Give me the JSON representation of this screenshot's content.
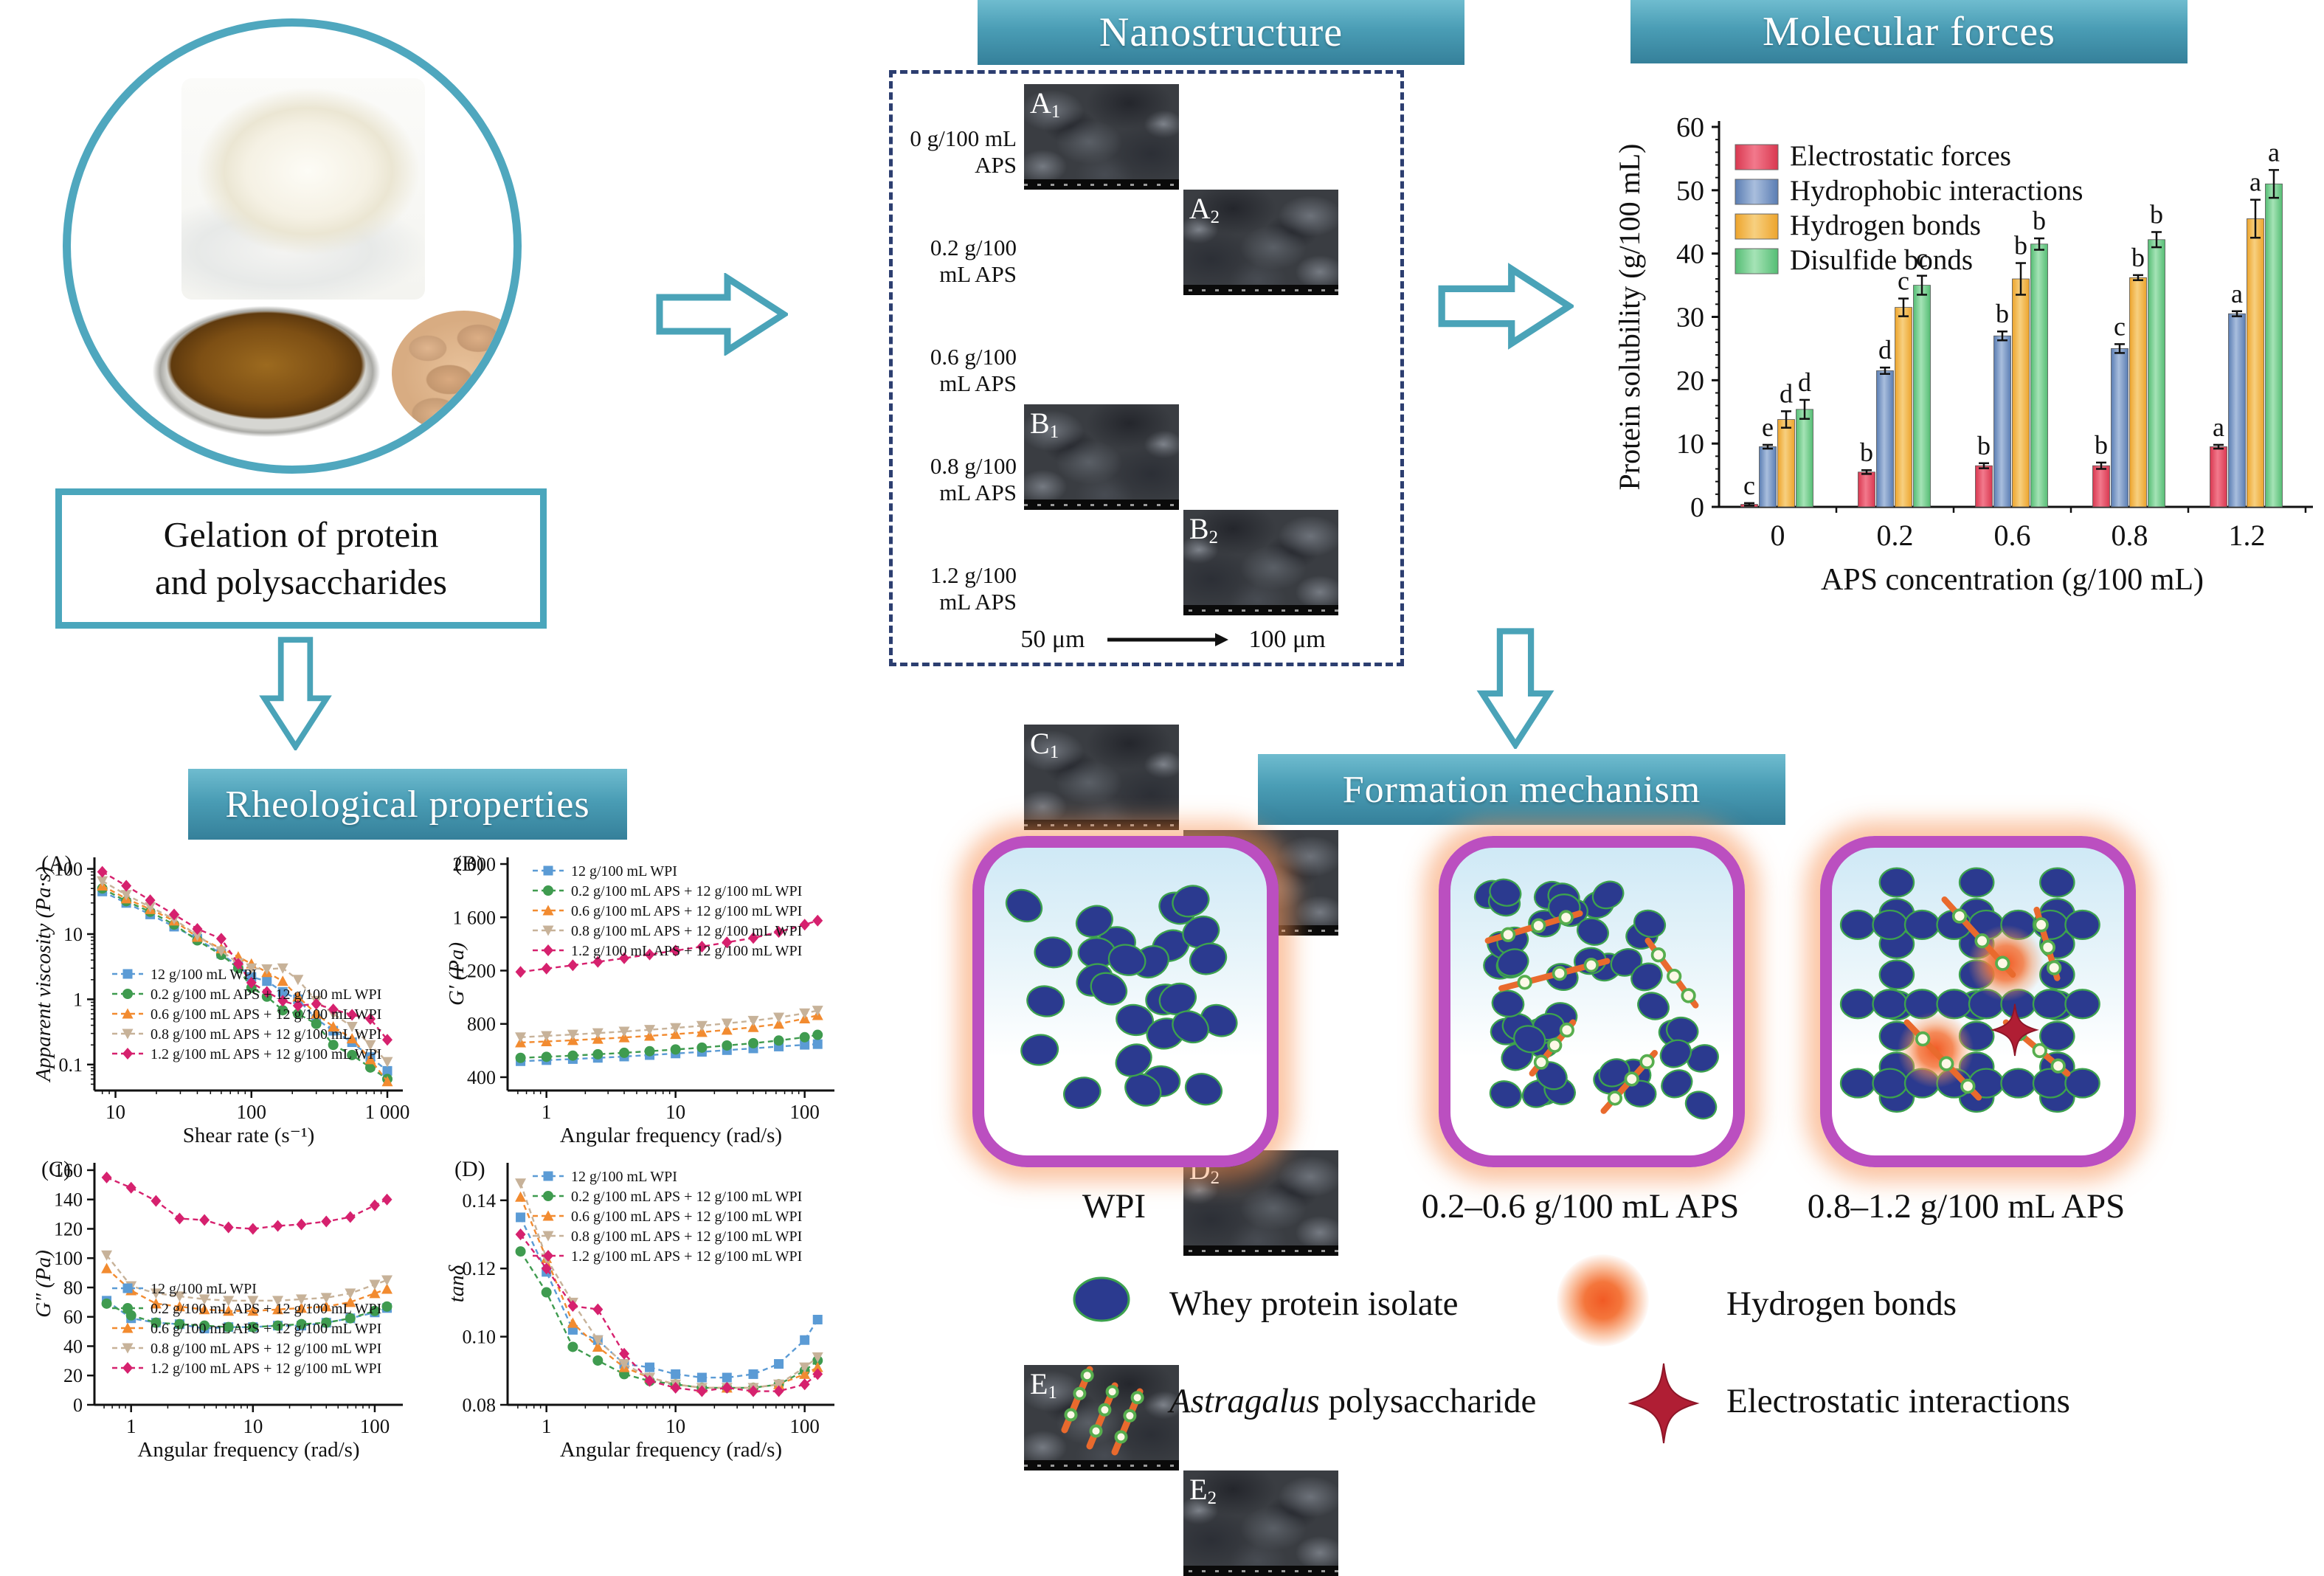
{
  "banners": {
    "nanostructure": "Nanostructure",
    "molecular_forces": "Molecular forces",
    "rheological": "Rheological properties",
    "formation": "Formation mechanism"
  },
  "source_panel": {
    "caption_line1": "Gelation of protein",
    "caption_line2": "and polysaccharides"
  },
  "nanostructure": {
    "rows": [
      {
        "label": "0 g/100 mL APS",
        "base": "A"
      },
      {
        "label": "0.2 g/100 mL APS",
        "base": "B"
      },
      {
        "label": "0.6 g/100 mL APS",
        "base": "C"
      },
      {
        "label": "0.8 g/100 mL APS",
        "base": "D"
      },
      {
        "label": "1.2 g/100 mL APS",
        "base": "E"
      }
    ],
    "scale_left": "50 μm",
    "scale_right": "100 μm"
  },
  "formation": {
    "panel_labels": [
      "WPI",
      "0.2–0.6 g/100 mL APS",
      "0.8–1.2 g/100 mL APS"
    ],
    "legend": [
      {
        "icon": "wpi-oval-icon",
        "label": "Whey protein isolate"
      },
      {
        "icon": "hydrogen-bond-icon",
        "label": "Hydrogen bonds"
      },
      {
        "icon": "aps-chain-icon",
        "italic": "Astragalus",
        "rest": " polysaccharide"
      },
      {
        "icon": "electrostatic-star-icon",
        "label": "Electrostatic interactions"
      }
    ]
  },
  "colors": {
    "banner_teal": "#4a9db5",
    "arrow_teal": "#4aa3b8",
    "dashed_border": "#2c3e70",
    "panel_border": "#bb4fc0",
    "wpi_oval": "#2b3a8f",
    "oval_outline": "#3da24e",
    "aps_chain": "#e96a2d",
    "ring_green": "#57ae4e",
    "star_red": "#b01e34",
    "glow_orange": "#f15a24"
  },
  "chart_data": [
    {
      "id": "molecular-forces-bar",
      "type": "bar",
      "title": "Molecular forces",
      "xlabel": "APS concentration (g/100 mL)",
      "ylabel": "Protein solubility (g/100 mL)",
      "ylim": [
        0,
        60
      ],
      "yticks": [
        0,
        10,
        20,
        30,
        40,
        50,
        60
      ],
      "categories": [
        "0",
        "0.2",
        "0.6",
        "0.8",
        "1.2"
      ],
      "legend_position": "top-left",
      "grid": false,
      "series": [
        {
          "name": "Electrostatic forces",
          "fill_dark": "#d93850",
          "fill_light": "#f2798c",
          "values": [
            0.4,
            5.5,
            6.5,
            6.5,
            9.5
          ],
          "errors": [
            0.2,
            0.3,
            0.4,
            0.5,
            0.3
          ],
          "letters": [
            "c",
            "b",
            "b",
            "b",
            "a"
          ]
        },
        {
          "name": "Hydrophobic interactions",
          "fill_dark": "#5a7db3",
          "fill_light": "#a9bedd",
          "values": [
            9.5,
            21.5,
            27.0,
            25.0,
            30.5
          ],
          "errors": [
            0.3,
            0.5,
            0.7,
            0.7,
            0.4
          ],
          "letters": [
            "e",
            "d",
            "b",
            "c",
            "a"
          ]
        },
        {
          "name": "Hydrogen bonds",
          "fill_dark": "#eda42c",
          "fill_light": "#f7d080",
          "values": [
            13.8,
            31.5,
            36.0,
            36.2,
            45.5
          ],
          "errors": [
            1.3,
            1.4,
            2.5,
            0.4,
            3.0
          ],
          "letters": [
            "d",
            "c",
            "b",
            "b",
            "a"
          ]
        },
        {
          "name": "Disulfide bonds",
          "fill_dark": "#55bd74",
          "fill_light": "#a5e3b6",
          "values": [
            15.4,
            35.0,
            41.5,
            42.2,
            51.0
          ],
          "errors": [
            1.5,
            1.5,
            0.9,
            1.2,
            2.2
          ],
          "letters": [
            "d",
            "c",
            "b",
            "b",
            "a"
          ]
        }
      ]
    },
    {
      "id": "rheology-A",
      "type": "line",
      "panel_letter": "(A)",
      "xlabel": "Shear rate (s⁻¹)",
      "ylabel": "Apparent viscosity (Pa·s)",
      "xscale": "log",
      "yscale": "log",
      "xlim": [
        7,
        1300
      ],
      "ylim": [
        0.04,
        150
      ],
      "xtick_vals": [
        10,
        100,
        1000
      ],
      "xtick_labels": [
        "10",
        "100",
        "1 000"
      ],
      "ytick_vals": [
        0.1,
        1,
        10,
        100
      ],
      "ytick_labels": [
        "0.1",
        "1",
        "10",
        "100"
      ],
      "legend_position": "bottom-left",
      "x": [
        8,
        12,
        18,
        27,
        40,
        60,
        80,
        100,
        130,
        170,
        220,
        300,
        400,
        550,
        750,
        1000
      ],
      "series": [
        {
          "name": "12 g/100 mL WPI",
          "color": "#5b9bd5",
          "marker": "square",
          "values": [
            45,
            30,
            20,
            13,
            8.5,
            5,
            3.2,
            2.2,
            1.9,
            1.3,
            1.0,
            0.5,
            0.33,
            0.22,
            0.13,
            0.08
          ]
        },
        {
          "name": "0.2 g/100 mL APS + 12 g/100 mL WPI",
          "color": "#3f9b4f",
          "marker": "circle",
          "values": [
            50,
            32,
            22,
            14,
            8,
            4.8,
            3.0,
            1.5,
            1.1,
            0.68,
            0.6,
            0.42,
            0.2,
            0.14,
            0.09,
            0.06
          ]
        },
        {
          "name": "0.6 g/100 mL APS + 12 g/100 mL WPI",
          "color": "#f28b30",
          "marker": "triangle",
          "values": [
            55,
            35,
            24,
            16,
            9,
            6,
            4.5,
            3.5,
            2.6,
            1.9,
            1.1,
            0.6,
            0.38,
            0.25,
            0.12,
            0.055
          ]
        },
        {
          "name": "0.8 g/100 mL APS + 12 g/100 mL WPI",
          "color": "#c7b299",
          "marker": "triangle-down",
          "values": [
            65,
            40,
            26,
            17,
            9.5,
            5.5,
            3.6,
            3.0,
            2.9,
            3.0,
            2.0,
            0.95,
            0.6,
            0.38,
            0.2,
            0.11
          ]
        },
        {
          "name": "1.2 g/100 mL APS + 12 g/100 mL WPI",
          "color": "#d6216e",
          "marker": "diamond",
          "values": [
            90,
            55,
            33,
            20,
            12,
            8.5,
            3.5,
            1.8,
            1.3,
            0.95,
            0.8,
            0.85,
            0.7,
            0.58,
            0.5,
            0.24
          ]
        }
      ]
    },
    {
      "id": "rheology-B",
      "type": "line",
      "panel_letter": "(B)",
      "xlabel": "Angular frequency (rad/s)",
      "ylabel": "G′ (Pa)",
      "xscale": "log",
      "yscale": "linear",
      "xlim": [
        0.5,
        170
      ],
      "ylim": [
        300,
        2050
      ],
      "xtick_vals": [
        1,
        10,
        100
      ],
      "xtick_labels": [
        "1",
        "10",
        "100"
      ],
      "ytick_vals": [
        400,
        800,
        1200,
        1600,
        2000
      ],
      "ytick_labels": [
        "400",
        "800",
        "1 200",
        "1 600",
        "2 000"
      ],
      "legend_position": "top-left",
      "x": [
        0.63,
        1,
        1.6,
        2.5,
        4,
        6.3,
        10,
        16,
        25,
        40,
        63,
        100,
        126
      ],
      "series": [
        {
          "name": "12 g/100 mL WPI",
          "color": "#5b9bd5",
          "marker": "square",
          "values": [
            520,
            528,
            536,
            545,
            555,
            566,
            578,
            590,
            603,
            616,
            630,
            643,
            648
          ]
        },
        {
          "name": "0.2 g/100 mL APS + 12 g/100 mL WPI",
          "color": "#3f9b4f",
          "marker": "circle",
          "values": [
            545,
            553,
            562,
            572,
            583,
            595,
            608,
            622,
            638,
            655,
            675,
            700,
            718
          ]
        },
        {
          "name": "0.6 g/100 mL APS + 12 g/100 mL WPI",
          "color": "#f28b30",
          "marker": "triangle",
          "values": [
            660,
            668,
            677,
            687,
            698,
            710,
            723,
            738,
            755,
            775,
            800,
            840,
            865
          ]
        },
        {
          "name": "0.8 g/100 mL APS + 12 g/100 mL WPI",
          "color": "#c7b299",
          "marker": "triangle-down",
          "values": [
            700,
            710,
            720,
            731,
            743,
            756,
            770,
            786,
            804,
            824,
            848,
            880,
            900
          ]
        },
        {
          "name": "1.2 g/100 mL APS + 12 g/100 mL WPI",
          "color": "#d6216e",
          "marker": "diamond",
          "values": [
            1190,
            1215,
            1240,
            1266,
            1293,
            1321,
            1350,
            1380,
            1412,
            1445,
            1490,
            1545,
            1575
          ]
        }
      ]
    },
    {
      "id": "rheology-C",
      "type": "line",
      "panel_letter": "(C)",
      "xlabel": "Angular frequency (rad/s)",
      "ylabel": "G″ (Pa)",
      "xscale": "log",
      "yscale": "linear",
      "xlim": [
        0.5,
        170
      ],
      "ylim": [
        0,
        165
      ],
      "xtick_vals": [
        1,
        10,
        100
      ],
      "xtick_labels": [
        "1",
        "10",
        "100"
      ],
      "ytick_vals": [
        0,
        20,
        40,
        60,
        80,
        100,
        120,
        140,
        160
      ],
      "ytick_labels": [
        "0",
        "20",
        "40",
        "60",
        "80",
        "100",
        "120",
        "140",
        "160"
      ],
      "legend_position": "bottom-left",
      "x": [
        0.63,
        1,
        1.6,
        2.5,
        4,
        6.3,
        10,
        16,
        25,
        40,
        63,
        100,
        126
      ],
      "series": [
        {
          "name": "12 g/100 mL WPI",
          "color": "#5b9bd5",
          "marker": "square",
          "values": [
            71,
            59,
            56,
            55,
            52,
            53,
            53,
            54,
            54,
            56,
            59,
            63,
            66
          ]
        },
        {
          "name": "0.2 g/100 mL APS + 12 g/100 mL WPI",
          "color": "#3f9b4f",
          "marker": "circle",
          "values": [
            69,
            61,
            56,
            55,
            54,
            53,
            53,
            54,
            55,
            56,
            59,
            64,
            67
          ]
        },
        {
          "name": "0.6 g/100 mL APS + 12 g/100 mL WPI",
          "color": "#f28b30",
          "marker": "triangle",
          "values": [
            93,
            78,
            69,
            67,
            65,
            64,
            64,
            65,
            66,
            67,
            70,
            76,
            79
          ]
        },
        {
          "name": "0.8 g/100 mL APS + 12 g/100 mL WPI",
          "color": "#c7b299",
          "marker": "triangle-down",
          "values": [
            102,
            81,
            76,
            74,
            72,
            71,
            71,
            71,
            72,
            73,
            76,
            82,
            85
          ]
        },
        {
          "name": "1.2 g/100 mL APS + 12 g/100 mL WPI",
          "color": "#d6216e",
          "marker": "diamond",
          "values": [
            155,
            148,
            139,
            127,
            126,
            121,
            120,
            122,
            123,
            125,
            128,
            136,
            140
          ]
        }
      ]
    },
    {
      "id": "rheology-D",
      "type": "line",
      "panel_letter": "(D)",
      "xlabel": "Angular frequency (rad/s)",
      "ylabel": "tanδ",
      "xscale": "log",
      "yscale": "linear",
      "xlim": [
        0.5,
        170
      ],
      "ylim": [
        0.08,
        0.151
      ],
      "xtick_vals": [
        1,
        10,
        100
      ],
      "xtick_labels": [
        "1",
        "10",
        "100"
      ],
      "ytick_vals": [
        0.08,
        0.1,
        0.12,
        0.14
      ],
      "ytick_labels": [
        "0.08",
        "0.10",
        "0.12",
        "0.14"
      ],
      "legend_position": "top-left",
      "x": [
        0.63,
        1,
        1.6,
        2.5,
        4,
        6.3,
        10,
        16,
        25,
        40,
        63,
        100,
        126
      ],
      "series": [
        {
          "name": "12 g/100 mL WPI",
          "color": "#5b9bd5",
          "marker": "square",
          "values": [
            0.135,
            0.119,
            0.102,
            0.099,
            0.092,
            0.091,
            0.089,
            0.088,
            0.088,
            0.089,
            0.092,
            0.099,
            0.105
          ]
        },
        {
          "name": "0.2 g/100 mL APS + 12 g/100 mL WPI",
          "color": "#3f9b4f",
          "marker": "circle",
          "values": [
            0.125,
            0.113,
            0.097,
            0.093,
            0.089,
            0.087,
            0.086,
            0.085,
            0.085,
            0.085,
            0.086,
            0.09,
            0.093
          ]
        },
        {
          "name": "0.6 g/100 mL APS + 12 g/100 mL WPI",
          "color": "#f28b30",
          "marker": "triangle",
          "values": [
            0.141,
            0.123,
            0.104,
            0.097,
            0.091,
            0.088,
            0.086,
            0.085,
            0.085,
            0.085,
            0.086,
            0.089,
            0.091
          ]
        },
        {
          "name": "0.8 g/100 mL APS + 12 g/100 mL WPI",
          "color": "#c7b299",
          "marker": "triangle-down",
          "values": [
            0.145,
            0.123,
            0.11,
            0.099,
            0.092,
            0.088,
            0.086,
            0.085,
            0.085,
            0.085,
            0.086,
            0.091,
            0.094
          ]
        },
        {
          "name": "1.2 g/100 mL APS + 12 g/100 mL WPI",
          "color": "#d6216e",
          "marker": "diamond",
          "values": [
            0.13,
            0.12,
            0.109,
            0.108,
            0.095,
            0.087,
            0.085,
            0.084,
            0.085,
            0.084,
            0.084,
            0.086,
            0.089
          ]
        }
      ]
    }
  ]
}
